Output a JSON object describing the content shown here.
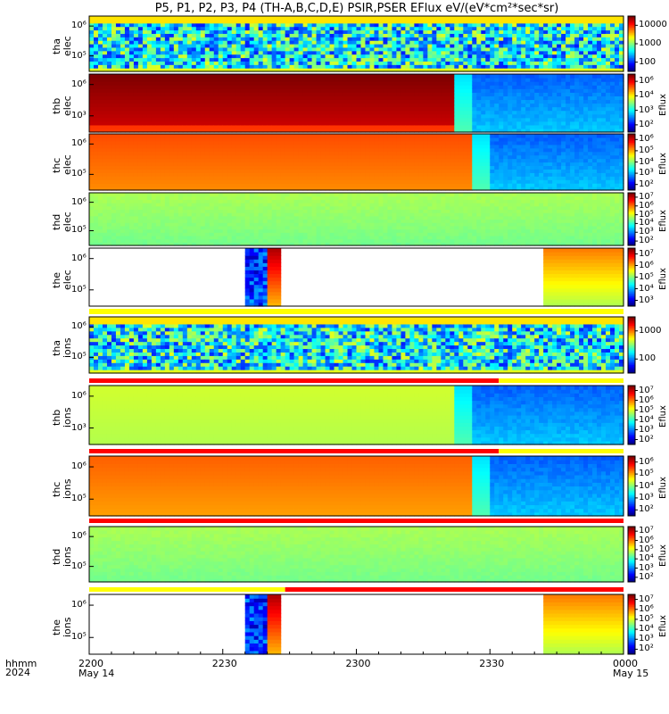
{
  "title": "P5, P1, P2, P3, P4 (TH-A,B,C,D,E) PSIR,PSER EFlux eV/(eV*cm²*sec*sr)",
  "time_axis": {
    "format_label": "hhmm",
    "year_label": "2024",
    "ticks": [
      "2200",
      "2230",
      "2300",
      "2330",
      "0000"
    ],
    "tick_dates": [
      "May 14",
      "",
      "",
      "",
      "May 15"
    ],
    "range": [
      "2024-05-14 22:00",
      "2024-05-15 00:00"
    ]
  },
  "colorbar_label": "Eflux",
  "chart_data": [
    {
      "type": "heatmap",
      "panel": "tha elec",
      "ylabel": [
        "tha",
        "elec"
      ],
      "y_ticks": [
        "10⁶",
        "10⁵"
      ],
      "colorbar_ticks": [
        "10000",
        "1000",
        "100"
      ],
      "pattern": "noisy",
      "data_span": [
        0,
        120
      ],
      "break_min": null
    },
    {
      "type": "heatmap",
      "panel": "thb elec",
      "ylabel": [
        "thb",
        "elec"
      ],
      "y_ticks": [
        "10⁶",
        "10³"
      ],
      "colorbar_ticks": [
        "10⁶",
        "10⁴",
        "10³",
        "10²"
      ],
      "pattern": "high-then-low",
      "data_span": [
        0,
        120
      ],
      "break_min": 82
    },
    {
      "type": "heatmap",
      "panel": "thc elec",
      "ylabel": [
        "thc",
        "elec"
      ],
      "y_ticks": [
        "10⁶",
        "10⁵"
      ],
      "colorbar_ticks": [
        "10⁶",
        "10⁵",
        "10⁴",
        "10³",
        "10²"
      ],
      "pattern": "high-then-low",
      "data_span": [
        0,
        120
      ],
      "break_min": 86
    },
    {
      "type": "heatmap",
      "panel": "thd elec",
      "ylabel": [
        "thd",
        "elec"
      ],
      "y_ticks": [
        "10⁶",
        "10⁵"
      ],
      "colorbar_ticks": [
        "10⁷",
        "10⁶",
        "10⁵",
        "10⁴",
        "10³",
        "10²"
      ],
      "pattern": "uniform",
      "data_span": [
        0,
        120
      ],
      "break_min": null
    },
    {
      "type": "heatmap",
      "panel": "the elec",
      "ylabel": [
        "the",
        "elec"
      ],
      "y_ticks": [
        "10⁶",
        "10⁵"
      ],
      "colorbar_ticks": [
        "10⁷",
        "10⁶",
        "10⁵",
        "10⁴",
        "10³"
      ],
      "pattern": "gaps",
      "data_span": [
        [
          35,
          43
        ],
        [
          102,
          120
        ]
      ],
      "break_min": null
    },
    {
      "type": "heatmap",
      "panel": "tha ions",
      "ylabel": [
        "tha",
        "ions"
      ],
      "y_ticks": [
        "10⁶",
        "10⁵"
      ],
      "colorbar_ticks": [
        "1000",
        "100"
      ],
      "pattern": "noisy",
      "data_span": [
        0,
        120
      ],
      "break_min": null
    },
    {
      "type": "heatmap",
      "panel": "thb ions",
      "ylabel": [
        "thb",
        "ions"
      ],
      "y_ticks": [
        "10⁶",
        "10³"
      ],
      "colorbar_ticks": [
        "10⁷",
        "10⁶",
        "10⁵",
        "10⁴",
        "10³",
        "10²"
      ],
      "pattern": "high-then-low",
      "data_span": [
        0,
        120
      ],
      "break_min": 82
    },
    {
      "type": "heatmap",
      "panel": "thc ions",
      "ylabel": [
        "thc",
        "ions"
      ],
      "y_ticks": [
        "10⁶",
        "10⁵"
      ],
      "colorbar_ticks": [
        "10⁶",
        "10⁵",
        "10⁴",
        "10³",
        "10²"
      ],
      "pattern": "high-then-low",
      "data_span": [
        0,
        120
      ],
      "break_min": 86
    },
    {
      "type": "heatmap",
      "panel": "thd ions",
      "ylabel": [
        "thd",
        "ions"
      ],
      "y_ticks": [
        "10⁶",
        "10⁵"
      ],
      "colorbar_ticks": [
        "10⁷",
        "10⁶",
        "10⁵",
        "10⁴",
        "10³",
        "10²"
      ],
      "pattern": "uniform",
      "data_span": [
        0,
        120
      ],
      "break_min": null
    },
    {
      "type": "heatmap",
      "panel": "the ions",
      "ylabel": [
        "the",
        "ions"
      ],
      "y_ticks": [
        "10⁶",
        "10⁵"
      ],
      "colorbar_ticks": [
        "10⁷",
        "10⁶",
        "10⁵",
        "10⁴",
        "10³",
        "10²"
      ],
      "pattern": "gaps",
      "data_span": [
        [
          35,
          43
        ],
        [
          102,
          120
        ]
      ],
      "break_min": null
    }
  ]
}
